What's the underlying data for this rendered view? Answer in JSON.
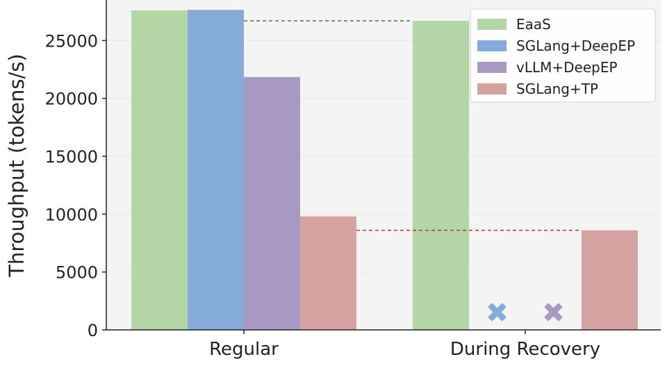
{
  "chart_data": {
    "type": "bar",
    "categories": [
      "Regular",
      "During Recovery"
    ],
    "ylabel": "Throughput (tokens/s)",
    "xlabel": "",
    "ylim": [
      0,
      28500
    ],
    "yticks": [
      0,
      5000,
      10000,
      15000,
      20000,
      25000
    ],
    "legend_position": "top-right",
    "series": [
      {
        "name": "EaaS",
        "color": "#b3d6a5",
        "values": [
          27600,
          26700
        ]
      },
      {
        "name": "SGLang+DeepEP",
        "color": "#84abda",
        "values": [
          27650,
          null
        ]
      },
      {
        "name": "vLLM+DeepEP",
        "color": "#a89ac5",
        "values": [
          21850,
          null
        ]
      },
      {
        "name": "SGLang+TP",
        "color": "#d5a39f",
        "values": [
          9800,
          8600
        ]
      }
    ],
    "failure_markers": [
      {
        "series": "SGLang+DeepEP",
        "category": "During Recovery",
        "symbol": "✖",
        "value": 1500
      },
      {
        "series": "vLLM+DeepEP",
        "category": "During Recovery",
        "symbol": "✖",
        "value": 1500
      }
    ],
    "reference_lines": [
      {
        "series": "EaaS",
        "value": 26700,
        "color": "#3f7a32",
        "style": "dashed"
      },
      {
        "series": "SGLang+TP",
        "value": 8600,
        "color": "#b23a32",
        "style": "dashed"
      }
    ]
  }
}
